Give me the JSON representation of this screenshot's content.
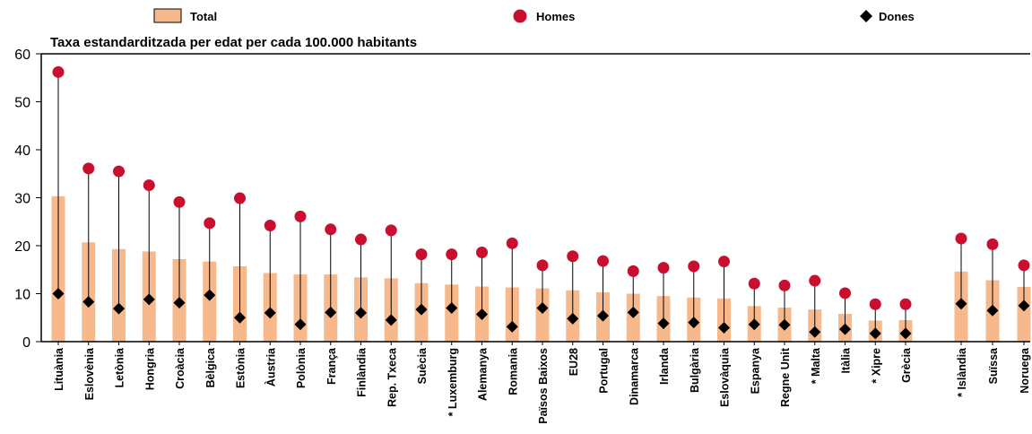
{
  "chart_data": {
    "type": "bar",
    "title": "Taxa estandarditzada per edat per cada 100.000 habitants",
    "ylim": [
      0,
      60
    ],
    "yticks": [
      0,
      10,
      20,
      30,
      40,
      50,
      60
    ],
    "grid": false,
    "legend_position": "top",
    "colors": {
      "total": "#f7b98b",
      "homes": "#c8102e",
      "dones": "#000000",
      "line": "#000000"
    },
    "categories": [
      "Lituània",
      "Eslovènia",
      "Letònia",
      "Hongria",
      "Croàcia",
      "Bèlgica",
      "Estònia",
      "Àustria",
      "Polònia",
      "França",
      "Finlàndia",
      "Rep. Txeca",
      "Suècia",
      "* Luxemburg",
      "Alemanya",
      "Romania",
      "Països Baixos",
      "EU28",
      "Portugal",
      "Dinamarca",
      "Irlanda",
      "Bulgària",
      "Eslovàquia",
      "Espanya",
      "Regne Unit",
      "* Malta",
      "Itàlia",
      "* Xipre",
      "Grècia",
      "* Islàndia",
      "Suïssa",
      "Noruega"
    ],
    "series": [
      {
        "name": "Total",
        "kind": "bar",
        "values": [
          30.3,
          20.7,
          19.3,
          18.8,
          17.2,
          16.7,
          15.7,
          14.3,
          14.0,
          14.0,
          13.4,
          13.2,
          12.2,
          11.9,
          11.5,
          11.3,
          11.1,
          10.7,
          10.3,
          10.0,
          9.5,
          9.2,
          9.0,
          7.4,
          7.1,
          6.7,
          5.8,
          4.4,
          4.5,
          14.6,
          12.8,
          11.4
        ]
      },
      {
        "name": "Homes",
        "kind": "marker-circle",
        "values": [
          56.2,
          36.1,
          35.5,
          32.6,
          29.1,
          24.7,
          29.9,
          24.2,
          26.1,
          23.4,
          21.3,
          23.2,
          18.2,
          18.2,
          18.6,
          20.5,
          15.9,
          17.8,
          16.8,
          14.7,
          15.4,
          15.7,
          16.7,
          12.1,
          11.7,
          12.7,
          10.1,
          7.8,
          7.8,
          21.5,
          20.3,
          15.9
        ]
      },
      {
        "name": "Dones",
        "kind": "marker-diamond",
        "values": [
          10.0,
          8.3,
          6.9,
          8.8,
          8.1,
          9.7,
          5.0,
          6.0,
          3.6,
          6.1,
          6.0,
          4.5,
          6.7,
          7.0,
          5.7,
          3.1,
          7.0,
          4.8,
          5.4,
          6.1,
          3.8,
          4.0,
          2.9,
          3.6,
          3.5,
          2.0,
          2.6,
          1.7,
          1.7,
          7.9,
          6.5,
          7.5
        ]
      }
    ]
  }
}
